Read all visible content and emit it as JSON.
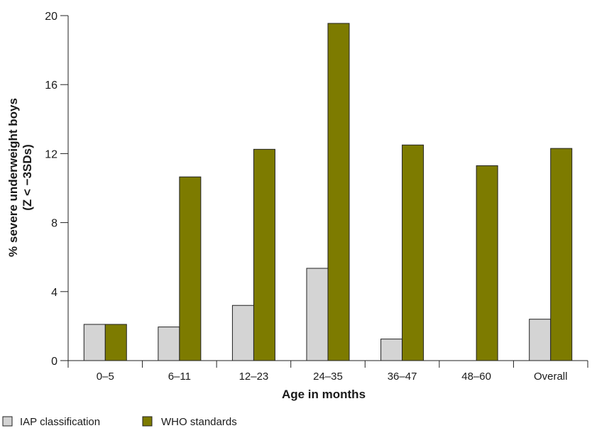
{
  "chart_data": {
    "type": "bar",
    "title": "",
    "xlabel": "Age in months",
    "ylabel_line1": "% severe underweight boys",
    "ylabel_line2": "(Z < −3SDs)",
    "categories": [
      "0–5",
      "6–11",
      "12–23",
      "24–35",
      "36–47",
      "48–60",
      "Overall"
    ],
    "series": [
      {
        "name": "IAP classification",
        "color": "#d4d4d4",
        "values": [
          2.1,
          1.95,
          3.2,
          5.35,
          1.25,
          0,
          2.4
        ]
      },
      {
        "name": "WHO standards",
        "color": "#7d7b00",
        "values": [
          2.1,
          10.65,
          12.25,
          19.55,
          12.5,
          11.3,
          12.3
        ]
      }
    ],
    "ylim": [
      0,
      20
    ],
    "yticks": [
      0,
      4,
      8,
      12,
      16,
      20
    ],
    "grid": false,
    "legend_position": "bottom-left"
  }
}
